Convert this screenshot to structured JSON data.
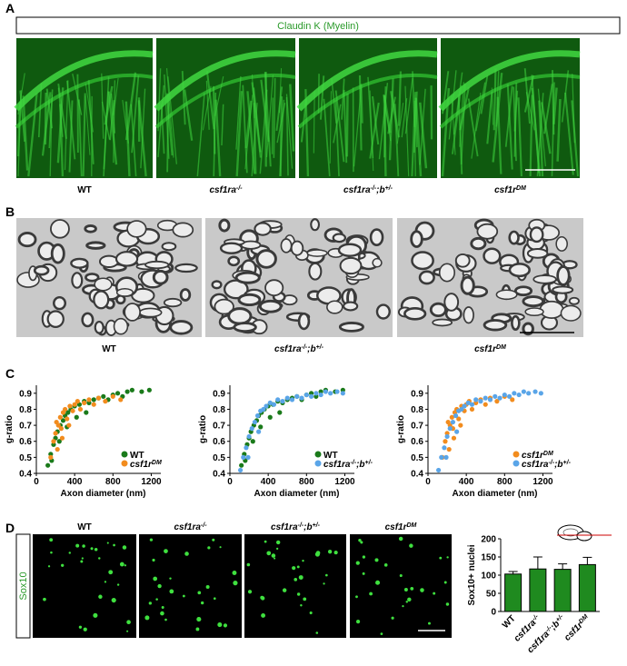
{
  "panel_a": {
    "label": "A",
    "banner": "Claudin K (Myelin)",
    "captions": [
      [
        "WT"
      ],
      [
        "csf1ra",
        "-/-"
      ],
      [
        "csf1ra",
        "-/-",
        ";b",
        "+/-"
      ],
      [
        "csf1r",
        "DM"
      ]
    ]
  },
  "panel_b": {
    "label": "B",
    "captions": [
      [
        "WT"
      ],
      [
        "csf1ra",
        "-/-",
        ";b",
        "+/-"
      ],
      [
        "csf1r",
        "DM"
      ]
    ]
  },
  "panel_c": {
    "label": "C"
  },
  "panel_d": {
    "label": "D",
    "stain": "Sox10",
    "captions": [
      [
        "WT"
      ],
      [
        "csf1ra",
        "-/-"
      ],
      [
        "csf1ra",
        "-/-",
        ";b",
        "+/-"
      ],
      [
        "csf1r",
        "DM"
      ]
    ]
  },
  "chart_data": [
    {
      "type": "scatter",
      "y_label": "g-ratio",
      "x_label": "Axon diameter (nm)",
      "xlim": [
        0,
        1300
      ],
      "ylim": [
        0.4,
        0.95
      ],
      "xticks": [
        0,
        400,
        800,
        1200
      ],
      "yticks": [
        0.4,
        0.5,
        0.6,
        0.7,
        0.8,
        0.9
      ],
      "legend": "lower-right",
      "series": [
        {
          "name": [
            "WT"
          ],
          "color": "#1a7a1a",
          "x": [
            120,
            150,
            180,
            200,
            220,
            250,
            280,
            300,
            330,
            360,
            400,
            450,
            500,
            550,
            600,
            650,
            700,
            750,
            800,
            850,
            900,
            950,
            1000,
            1100,
            1180,
            160,
            240,
            320,
            420,
            520
          ],
          "values": [
            0.45,
            0.52,
            0.58,
            0.62,
            0.66,
            0.7,
            0.73,
            0.76,
            0.78,
            0.8,
            0.82,
            0.83,
            0.85,
            0.84,
            0.86,
            0.87,
            0.88,
            0.86,
            0.89,
            0.9,
            0.88,
            0.91,
            0.92,
            0.91,
            0.92,
            0.48,
            0.6,
            0.69,
            0.75,
            0.78
          ]
        },
        {
          "name": [
            "csf1r",
            "DM"
          ],
          "color": "#f28c1e",
          "x": [
            150,
            180,
            200,
            210,
            230,
            250,
            260,
            280,
            300,
            320,
            350,
            380,
            400,
            430,
            460,
            500,
            550,
            600,
            650,
            720,
            800,
            880,
            270,
            340,
            220
          ],
          "values": [
            0.5,
            0.6,
            0.65,
            0.72,
            0.7,
            0.75,
            0.68,
            0.78,
            0.8,
            0.74,
            0.82,
            0.79,
            0.83,
            0.85,
            0.8,
            0.84,
            0.86,
            0.83,
            0.87,
            0.85,
            0.88,
            0.86,
            0.62,
            0.7,
            0.55
          ]
        }
      ]
    },
    {
      "type": "scatter",
      "y_label": "g-ratio",
      "x_label": "Axon diameter (nm)",
      "xlim": [
        0,
        1300
      ],
      "ylim": [
        0.4,
        0.95
      ],
      "xticks": [
        0,
        400,
        800,
        1200
      ],
      "yticks": [
        0.4,
        0.5,
        0.6,
        0.7,
        0.8,
        0.9
      ],
      "legend": "lower-right",
      "series": [
        {
          "name": [
            "WT"
          ],
          "color": "#1a7a1a",
          "x": [
            120,
            150,
            180,
            200,
            220,
            250,
            280,
            300,
            330,
            360,
            400,
            450,
            500,
            550,
            600,
            650,
            700,
            750,
            800,
            850,
            900,
            950,
            1000,
            1100,
            1180,
            160,
            240,
            320,
            420,
            520
          ],
          "values": [
            0.45,
            0.52,
            0.58,
            0.62,
            0.66,
            0.7,
            0.73,
            0.76,
            0.78,
            0.8,
            0.82,
            0.83,
            0.85,
            0.84,
            0.86,
            0.87,
            0.88,
            0.86,
            0.89,
            0.9,
            0.88,
            0.91,
            0.92,
            0.91,
            0.92,
            0.48,
            0.6,
            0.69,
            0.75,
            0.78
          ]
        },
        {
          "name": [
            "csf1ra",
            "-/-",
            ";b",
            "+/-"
          ],
          "color": "#5aa5e8",
          "x": [
            110,
            140,
            170,
            200,
            230,
            260,
            290,
            320,
            350,
            380,
            420,
            460,
            500,
            550,
            600,
            650,
            700,
            750,
            800,
            850,
            900,
            950,
            1000,
            1050,
            1120,
            1180,
            190,
            300
          ],
          "values": [
            0.42,
            0.5,
            0.56,
            0.63,
            0.68,
            0.72,
            0.76,
            0.79,
            0.8,
            0.82,
            0.84,
            0.83,
            0.86,
            0.85,
            0.87,
            0.86,
            0.88,
            0.87,
            0.89,
            0.88,
            0.9,
            0.89,
            0.91,
            0.9,
            0.91,
            0.9,
            0.5,
            0.66
          ]
        }
      ]
    },
    {
      "type": "scatter",
      "y_label": "g-ratio",
      "x_label": "Axon diameter (nm)",
      "xlim": [
        0,
        1300
      ],
      "ylim": [
        0.4,
        0.95
      ],
      "xticks": [
        0,
        400,
        800,
        1200
      ],
      "yticks": [
        0.4,
        0.5,
        0.6,
        0.7,
        0.8,
        0.9
      ],
      "legend": "lower-right",
      "series": [
        {
          "name": [
            "csf1r",
            "DM"
          ],
          "color": "#f28c1e",
          "x": [
            150,
            180,
            200,
            210,
            230,
            250,
            260,
            280,
            300,
            320,
            350,
            380,
            400,
            430,
            460,
            500,
            550,
            600,
            650,
            720,
            800,
            880,
            270,
            340,
            220
          ],
          "values": [
            0.5,
            0.6,
            0.65,
            0.72,
            0.7,
            0.75,
            0.68,
            0.78,
            0.8,
            0.74,
            0.82,
            0.79,
            0.83,
            0.85,
            0.8,
            0.84,
            0.86,
            0.83,
            0.87,
            0.85,
            0.88,
            0.86,
            0.62,
            0.7,
            0.55
          ]
        },
        {
          "name": [
            "csf1ra",
            "-/-",
            ";b",
            "+/-"
          ],
          "color": "#5aa5e8",
          "x": [
            110,
            140,
            170,
            200,
            230,
            260,
            290,
            320,
            350,
            380,
            420,
            460,
            500,
            550,
            600,
            650,
            700,
            750,
            800,
            850,
            900,
            950,
            1000,
            1050,
            1120,
            1180,
            190,
            300
          ],
          "values": [
            0.42,
            0.5,
            0.56,
            0.63,
            0.68,
            0.72,
            0.76,
            0.79,
            0.8,
            0.82,
            0.84,
            0.83,
            0.86,
            0.85,
            0.87,
            0.86,
            0.88,
            0.87,
            0.89,
            0.88,
            0.9,
            0.89,
            0.91,
            0.9,
            0.91,
            0.9,
            0.5,
            0.66
          ]
        }
      ]
    },
    {
      "type": "bar",
      "y_label": "Sox10+ nuclei",
      "categories": [
        [
          "WT"
        ],
        [
          "csf1ra",
          "-/-"
        ],
        [
          "csf1ra",
          "-/-",
          ";b",
          "+/-"
        ],
        [
          "csf1r",
          "DM"
        ]
      ],
      "values": [
        103,
        117,
        116,
        129
      ],
      "errors": [
        7,
        33,
        15,
        20
      ],
      "color": "#1f8a1f",
      "ylim": [
        0,
        200
      ],
      "yticks": [
        0,
        50,
        100,
        150,
        200
      ]
    }
  ]
}
